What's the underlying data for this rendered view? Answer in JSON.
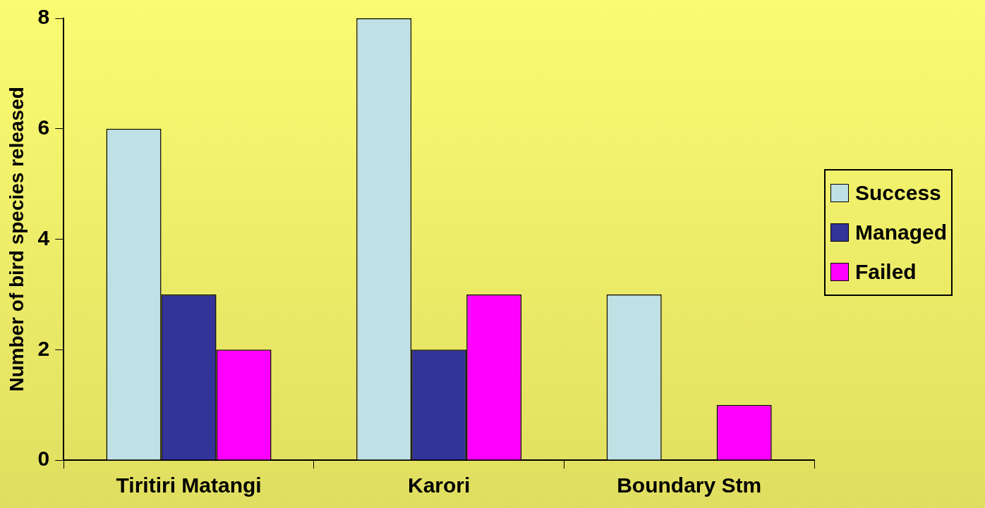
{
  "chart_data": {
    "type": "bar",
    "ylabel": "Number of bird species released",
    "categories": [
      "Tiritiri Matangi",
      "Karori",
      "Boundary Stm"
    ],
    "series": [
      {
        "name": "Success",
        "color": "#bfe0e4",
        "values": [
          6,
          8,
          3
        ]
      },
      {
        "name": "Managed",
        "color": "#333399",
        "values": [
          3,
          2,
          0
        ]
      },
      {
        "name": "Failed",
        "color": "#ff00ff",
        "values": [
          2,
          3,
          1
        ]
      }
    ],
    "ylim": [
      0,
      8
    ],
    "yticks": [
      0,
      2,
      4,
      6,
      8
    ],
    "grid": false,
    "legend": "right"
  }
}
